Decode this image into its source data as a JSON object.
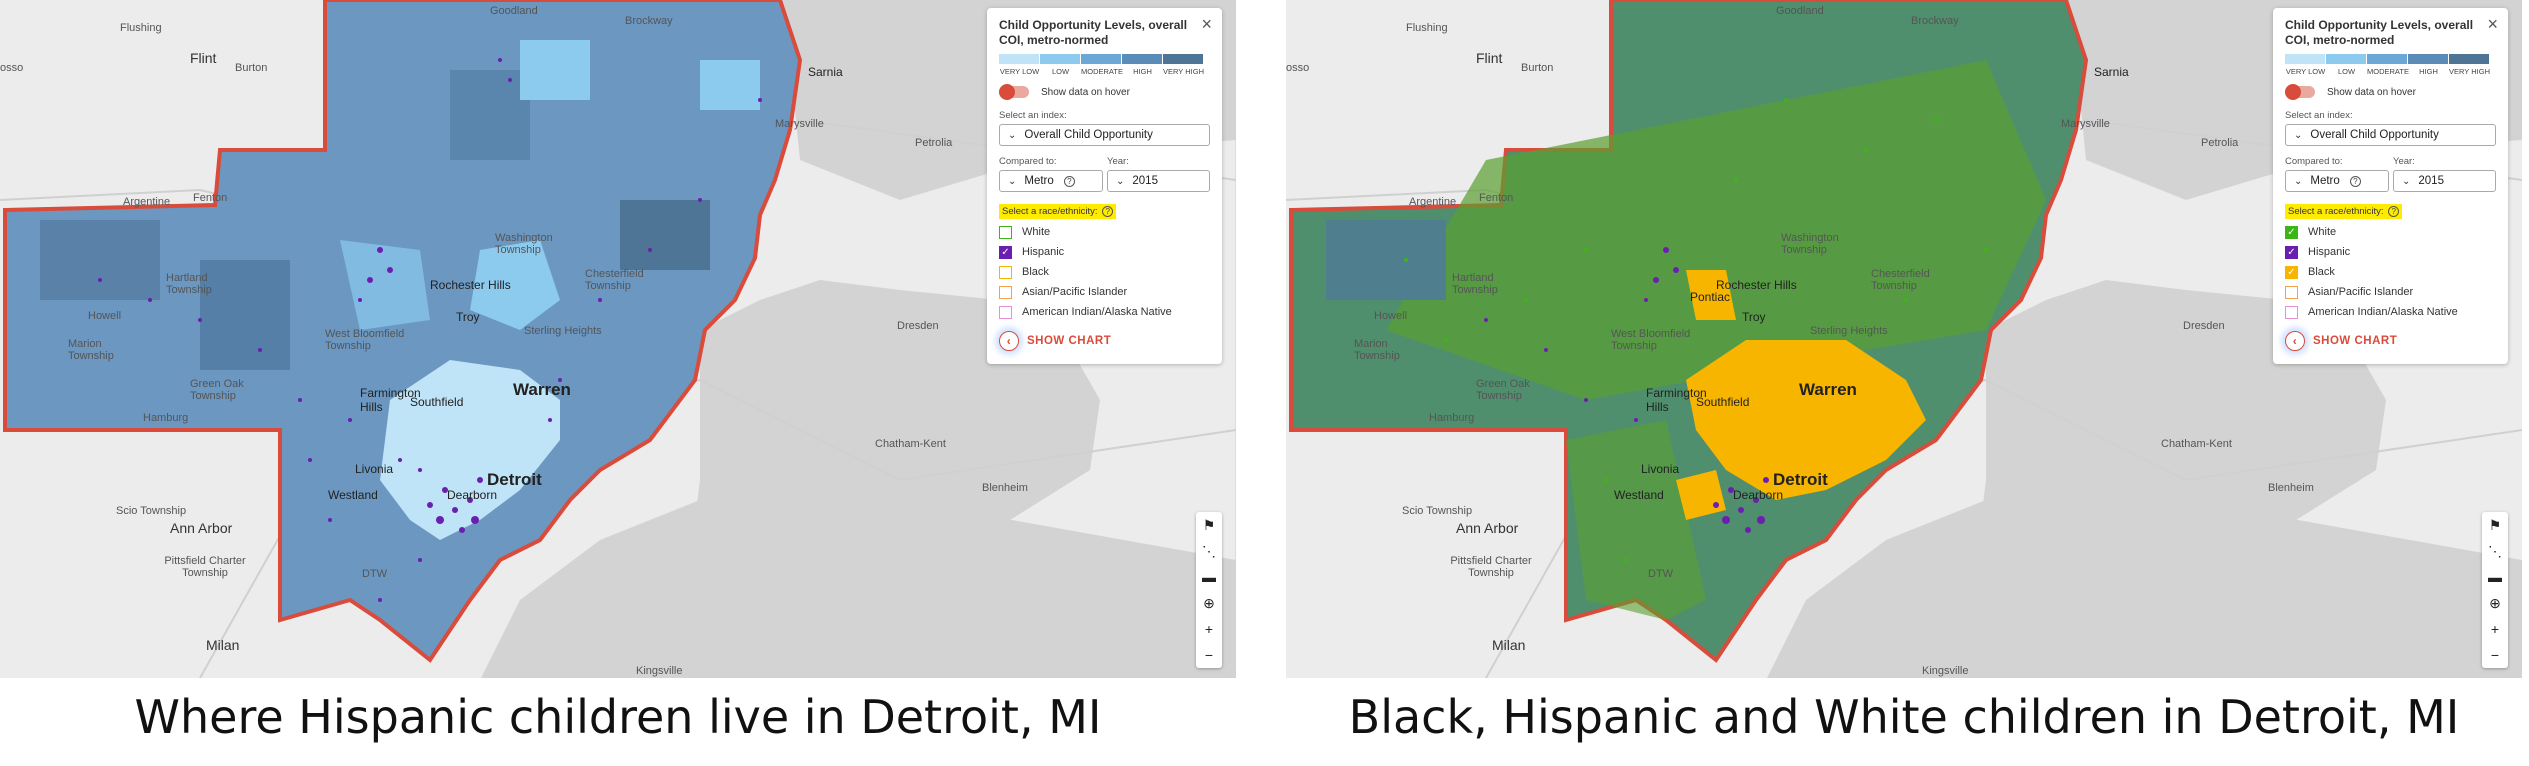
{
  "legend": {
    "title": "Child Opportunity Levels, overall COI, metro-normed",
    "close_label": "×",
    "scale": [
      {
        "label": "VERY LOW",
        "color": "#bfe3f7"
      },
      {
        "label": "LOW",
        "color": "#8ccbee"
      },
      {
        "label": "MODERATE",
        "color": "#6ba8d6"
      },
      {
        "label": "HIGH",
        "color": "#5a8cb7"
      },
      {
        "label": "VERY HIGH",
        "color": "#4f7596"
      }
    ],
    "show_hover_label": "Show data on hover",
    "index_label": "Select an index:",
    "index_value": "Overall Child Opportunity",
    "compared_label": "Compared to:",
    "compared_value": "Metro",
    "year_label": "Year:",
    "year_value": "2015",
    "race_label": "Select a race/ethnicity:",
    "races": [
      "White",
      "Hispanic",
      "Black",
      "Asian/Pacific Islander",
      "American Indian/Alaska Native"
    ],
    "show_chart_label": "SHOW CHART"
  },
  "panels": [
    {
      "caption": "Where Hispanic children live in Detroit, MI",
      "checked": [
        false,
        true,
        false,
        false,
        false
      ]
    },
    {
      "caption": "Black, Hispanic and White children in Detroit, MI",
      "checked": [
        true,
        true,
        true,
        false,
        false
      ]
    }
  ],
  "colors": {
    "accent": "#d94b3a",
    "white_race": "#3cb517",
    "hispanic_race": "#6a1fb0",
    "black_race": "#f7b500",
    "asian_race": "#f2a24a",
    "native_race": "#e88fd8",
    "water": "#d3d3d3",
    "land": "#ececec",
    "highlight": "#ffeb00"
  },
  "places": {
    "flushing": "Flushing",
    "goodland": "Goodland",
    "brockway": "Brockway",
    "flint": "Flint",
    "burton": "Burton",
    "sarnia": "Sarnia",
    "marysville": "Marysville",
    "petrolia": "Petrolia",
    "argentine": "Argentine",
    "fenton": "Fenton",
    "hartland": "Hartland Township",
    "washington": "Washington Township",
    "rochester": "Rochester Hills",
    "chesterfield": "Chesterfield Township",
    "howell": "Howell",
    "marion": "Marion Township",
    "west_bloomfield": "West Bloomfield Township",
    "troy": "Troy",
    "sterling": "Sterling Heights",
    "dresden": "Dresden",
    "green_oak": "Green Oak Township",
    "farmington": "Farmington Hills",
    "southfield": "Southfield",
    "warren": "Warren",
    "hamburg": "Hamburg",
    "chatham": "Chatham-Kent",
    "westland": "Westland",
    "livonia": "Livonia",
    "detroit": "Detroit",
    "dearborn": "Dearborn",
    "blenheim": "Blenheim",
    "scio": "Scio Township",
    "ann_arbor": "Ann Arbor",
    "pittsfield": "Pittsfield Charter Township",
    "dtw": "DTW",
    "milan": "Milan",
    "kingsville": "Kingsville",
    "pontiac": "Pontiac",
    "left_edge": "osso"
  },
  "map_controls": [
    "pan-icon",
    "lasso-icon",
    "us-map-icon",
    "locate-icon",
    "zoom-in-icon",
    "zoom-out-icon"
  ]
}
